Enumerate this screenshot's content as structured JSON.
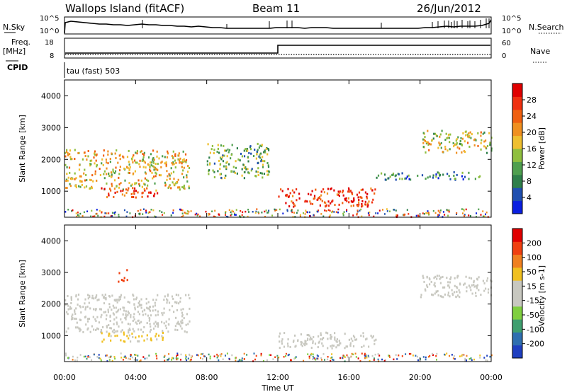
{
  "header": {
    "site": "Wallops Island (fitACF)",
    "beam": "Beam 11",
    "date": "26/Jun/2012"
  },
  "status_panel": {
    "left_top_label": "N.Sky",
    "left_top_ticks": [
      "10^5",
      "10^0"
    ],
    "right_top_label": "N.Search",
    "right_top_ticks": [
      "10^5",
      "10^0"
    ],
    "freq_label_1": "Freq.",
    "freq_label_2": "[MHz]",
    "freq_ticks": [
      "18",
      "8"
    ],
    "nave_label": "Nave",
    "nave_ticks": [
      "60",
      "0"
    ],
    "cpid_label": "CPID",
    "cpid_value": "tau (fast) 503"
  },
  "chart_data": [
    {
      "type": "heatmap",
      "name": "power",
      "ylabel": "Slant Range [km]",
      "yticks": [
        1000,
        2000,
        3000,
        4000
      ],
      "ylim": [
        180,
        4500
      ],
      "xlim": [
        0,
        24
      ],
      "colorbar": {
        "label": "Power [dB]",
        "ticks": [
          "28",
          "24",
          "20",
          "16",
          "12",
          "8",
          "4"
        ],
        "colors": [
          "#0a1fe0",
          "#1f4fb0",
          "#2e7f4a",
          "#4f9f4f",
          "#8fbf3f",
          "#efbf2f",
          "#f09020",
          "#f06010",
          "#f03010",
          "#e00000"
        ]
      },
      "features": [
        {
          "t_start": 0.0,
          "t_end": 7.0,
          "range_start": 1050,
          "range_end": 2300,
          "level_db": 18
        },
        {
          "t_start": 2.0,
          "t_end": 5.5,
          "range_start": 800,
          "range_end": 1100,
          "level_db": 26
        },
        {
          "t_start": 8.0,
          "t_end": 11.5,
          "range_start": 1400,
          "range_end": 2500,
          "level_db": 12
        },
        {
          "t_start": 12.0,
          "t_end": 17.5,
          "range_start": 500,
          "range_end": 1100,
          "level_db": 28
        },
        {
          "t_start": 17.5,
          "t_end": 23.5,
          "range_start": 1350,
          "range_end": 1600,
          "level_db": 8
        },
        {
          "t_start": 20.0,
          "t_end": 24.0,
          "range_start": 2200,
          "range_end": 2900,
          "level_db": 16
        }
      ]
    },
    {
      "type": "heatmap",
      "name": "velocity",
      "ylabel": "Slant Range [km]",
      "yticks": [
        1000,
        2000,
        3000,
        4000
      ],
      "ylim": [
        180,
        4500
      ],
      "xlim": [
        0,
        24
      ],
      "xticks": [
        "00:00",
        "04:00",
        "08:00",
        "12:00",
        "16:00",
        "20:00",
        "00:00"
      ],
      "xlabel": "Time UT",
      "colorbar": {
        "label": "Velocity [m s-1]",
        "ticks": [
          "200",
          "100",
          "50",
          "15",
          "-15",
          "-50",
          "-100",
          "-200"
        ],
        "colors": [
          "#1f3fc0",
          "#2f6fb0",
          "#3f9f6f",
          "#7fcf3f",
          "#c8c8c0",
          "#c8c8c0",
          "#f0c020",
          "#f08020",
          "#f04010",
          "#e00000"
        ]
      },
      "features": [
        {
          "t_start": 0.0,
          "t_end": 7.0,
          "range_start": 1100,
          "range_end": 2300,
          "velocity": 0
        },
        {
          "t_start": 2.0,
          "t_end": 5.5,
          "range_start": 800,
          "range_end": 1100,
          "velocity": 60
        },
        {
          "t_start": 3.0,
          "t_end": 3.5,
          "range_start": 2700,
          "range_end": 3100,
          "velocity": 150
        },
        {
          "t_start": 12.0,
          "t_end": 17.5,
          "range_start": 600,
          "range_end": 1100,
          "velocity": 0
        },
        {
          "t_start": 20.0,
          "t_end": 24.0,
          "range_start": 2200,
          "range_end": 2900,
          "velocity": 0
        }
      ]
    }
  ]
}
